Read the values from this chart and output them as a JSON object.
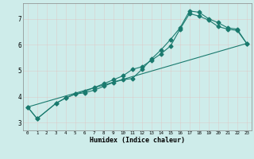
{
  "xlabel": "Humidex (Indice chaleur)",
  "background_color": "#ceecea",
  "grid_color": "#afd8d4",
  "line_color": "#1a7a6e",
  "xlim": [
    -0.5,
    23.5
  ],
  "ylim": [
    2.7,
    7.6
  ],
  "xticks": [
    0,
    1,
    2,
    3,
    4,
    5,
    6,
    7,
    8,
    9,
    10,
    11,
    12,
    13,
    14,
    15,
    16,
    17,
    18,
    19,
    20,
    21,
    22,
    23
  ],
  "yticks": [
    3,
    4,
    5,
    6,
    7
  ],
  "series": [
    {
      "x": [
        0,
        1,
        3,
        4,
        5,
        6,
        7,
        8,
        9,
        10,
        11,
        12,
        13,
        14,
        15,
        16,
        17,
        18,
        19,
        20,
        21,
        22,
        23
      ],
      "y": [
        3.6,
        3.15,
        3.75,
        3.95,
        4.1,
        4.15,
        4.25,
        4.4,
        4.55,
        4.65,
        4.7,
        5.05,
        5.45,
        5.8,
        6.2,
        6.65,
        7.3,
        7.25,
        7.0,
        6.85,
        6.65,
        6.6,
        6.05
      ],
      "marker": "D",
      "markersize": 2.5
    },
    {
      "x": [
        0,
        1,
        3,
        4,
        5,
        6,
        7,
        8,
        9,
        10,
        11,
        12,
        13,
        14,
        15,
        16,
        17,
        18,
        19,
        20,
        21,
        22,
        23
      ],
      "y": [
        3.6,
        3.15,
        3.75,
        3.95,
        4.1,
        4.2,
        4.35,
        4.5,
        4.65,
        4.8,
        5.05,
        5.15,
        5.4,
        5.65,
        5.95,
        6.6,
        7.2,
        7.1,
        6.95,
        6.7,
        6.6,
        6.55,
        6.05
      ],
      "marker": "D",
      "markersize": 2.5
    },
    {
      "x": [
        0,
        23
      ],
      "y": [
        3.6,
        6.05
      ],
      "marker": null,
      "markersize": 0
    }
  ]
}
